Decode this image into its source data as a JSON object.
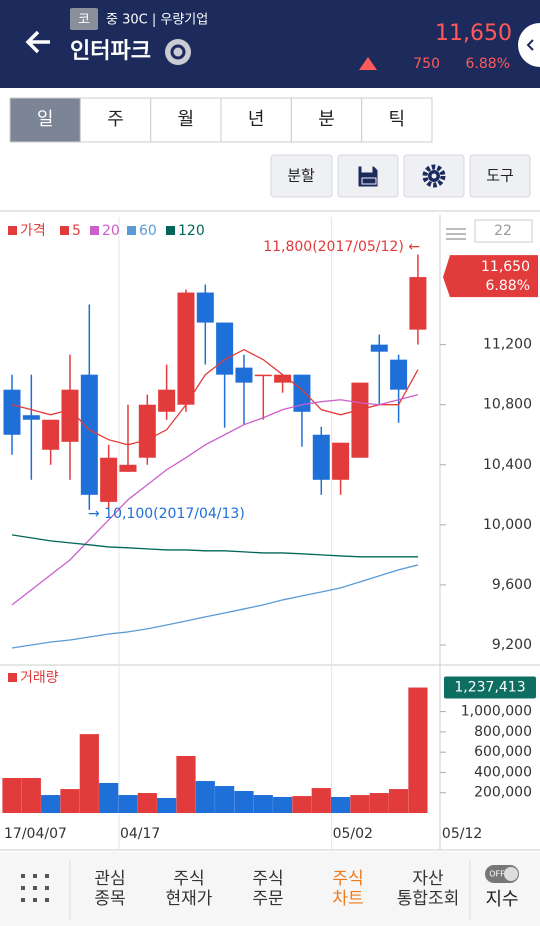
{
  "header": {
    "market_badge": "코",
    "info": "중 30C | 우량기업",
    "name": "인터파크",
    "price": "11,650",
    "change": "750",
    "change_rate": "6.88%"
  },
  "period_tabs": [
    "일",
    "주",
    "월",
    "년",
    "분",
    "틱"
  ],
  "tools": [
    "분할",
    "도구"
  ],
  "chart_data": [
    {
      "type": "candlestick",
      "categories": [
        "17/04/07",
        null,
        null,
        null,
        null,
        null,
        "04/17",
        null,
        null,
        null,
        null,
        null,
        null,
        null,
        null,
        null,
        null,
        "05/02",
        null,
        null,
        null,
        "05/12"
      ],
      "ylim": [
        9080,
        12050
      ],
      "yticks": [
        {
          "value": 9200,
          "label": "9,200"
        },
        {
          "value": 9600,
          "label": "9,600"
        },
        {
          "value": 10000,
          "label": "10,000"
        },
        {
          "value": 10400,
          "label": "10,400"
        },
        {
          "value": 10800,
          "label": "10,800"
        },
        {
          "value": 11200,
          "label": "11,200"
        }
      ],
      "grid": true,
      "visible_count": 22,
      "high_label": "11,800(2017/05/12) ←",
      "low_label": "→ 10,100(2017/04/13)",
      "last_tag": [
        "11,650",
        "6.88%"
      ],
      "series": [
        {
          "name": "가격",
          "color": "#e23b3b",
          "down_color": "#1f6fd8",
          "open": [
            10900,
            10730,
            10500,
            10553,
            11000,
            10153,
            10353,
            10447,
            10753,
            10800,
            11547,
            11347,
            11047,
            10990,
            10947,
            11000,
            10600,
            10300,
            10447,
            11200,
            11100,
            11300
          ],
          "high": [
            11000,
            11000,
            10700,
            11133,
            11467,
            10533,
            10800,
            10867,
            11067,
            11567,
            11600,
            11347,
            11133,
            11000,
            11000,
            11000,
            10653,
            10547,
            10947,
            11267,
            11133,
            11800
          ],
          "low": [
            10467,
            10300,
            10400,
            10300,
            10100,
            10100,
            10353,
            10400,
            10700,
            10753,
            11067,
            10647,
            10667,
            10700,
            10880,
            10520,
            10200,
            10200,
            10447,
            10800,
            10680,
            11200
          ],
          "close": [
            10600,
            10700,
            10700,
            10900,
            10200,
            10447,
            10400,
            10800,
            10900,
            11547,
            11347,
            11000,
            10947,
            11000,
            11000,
            10753,
            10300,
            10547,
            10947,
            11153,
            10900,
            11650
          ]
        },
        {
          "name": "5",
          "color": "#e23b3b",
          "values": [
            10800,
            10767,
            10733,
            10767,
            10633,
            10567,
            10533,
            10567,
            10633,
            10800,
            11000,
            11100,
            11167,
            11100,
            11000,
            10900,
            10767,
            10733,
            10767,
            10800,
            10800,
            11033
          ]
        },
        {
          "name": "20",
          "color": "#cc5fcc",
          "values": [
            9467,
            9567,
            9667,
            9767,
            9900,
            10033,
            10167,
            10267,
            10367,
            10447,
            10533,
            10600,
            10667,
            10713,
            10767,
            10800,
            10820,
            10833,
            10813,
            10800,
            10833,
            10867
          ]
        },
        {
          "name": "60",
          "color": "#5b9bd5",
          "values": [
            9180,
            9200,
            9220,
            9233,
            9253,
            9273,
            9287,
            9307,
            9333,
            9360,
            9387,
            9413,
            9440,
            9467,
            9500,
            9527,
            9553,
            9580,
            9620,
            9660,
            9700,
            9733
          ]
        },
        {
          "name": "120",
          "color": "#00665a",
          "values": [
            9933,
            9913,
            9893,
            9880,
            9867,
            9853,
            9847,
            9840,
            9833,
            9833,
            9827,
            9827,
            9820,
            9813,
            9813,
            9807,
            9800,
            9793,
            9787,
            9787,
            9787,
            9787
          ]
        }
      ]
    },
    {
      "type": "bar",
      "ylim": [
        0,
        1440000
      ],
      "yticks": [
        {
          "value": 200000,
          "label": "200,000"
        },
        {
          "value": 400000,
          "label": "400,000"
        },
        {
          "value": 600000,
          "label": "600,000"
        },
        {
          "value": 800000,
          "label": "800,000"
        },
        {
          "value": 1000000,
          "label": "1,000,000"
        }
      ],
      "series": [
        {
          "name": "거래량",
          "color": "#e23b3b",
          "colors": [
            "#e23b3b",
            "#e23b3b",
            "#1f6fd8",
            "#e23b3b",
            "#e23b3b",
            "#1f6fd8",
            "#1f6fd8",
            "#e23b3b",
            "#1f6fd8",
            "#e23b3b",
            "#1f6fd8",
            "#1f6fd8",
            "#1f6fd8",
            "#1f6fd8",
            "#1f6fd8",
            "#e23b3b",
            "#e23b3b",
            "#1f6fd8",
            "#e23b3b",
            "#e23b3b",
            "#e23b3b",
            "#e23b3b"
          ],
          "values": [
            345000,
            345000,
            177000,
            236000,
            778000,
            296000,
            177000,
            197000,
            148000,
            562000,
            315000,
            266000,
            217000,
            177000,
            158000,
            167000,
            246000,
            158000,
            177000,
            197000,
            236000,
            1237413
          ],
          "value_labels": [
            null,
            null,
            null,
            null,
            null,
            null,
            null,
            null,
            null,
            null,
            null,
            null,
            null,
            null,
            null,
            null,
            null,
            null,
            null,
            null,
            null,
            "1,237,413"
          ]
        }
      ]
    }
  ],
  "bottom_nav": {
    "items": [
      [
        "관심",
        "종목"
      ],
      [
        "주식",
        "현재가"
      ],
      [
        "주식",
        "주문"
      ],
      [
        "주식",
        "차트"
      ],
      [
        "자산",
        "통합조회"
      ]
    ],
    "toggle": "OFF",
    "index": "지수"
  }
}
